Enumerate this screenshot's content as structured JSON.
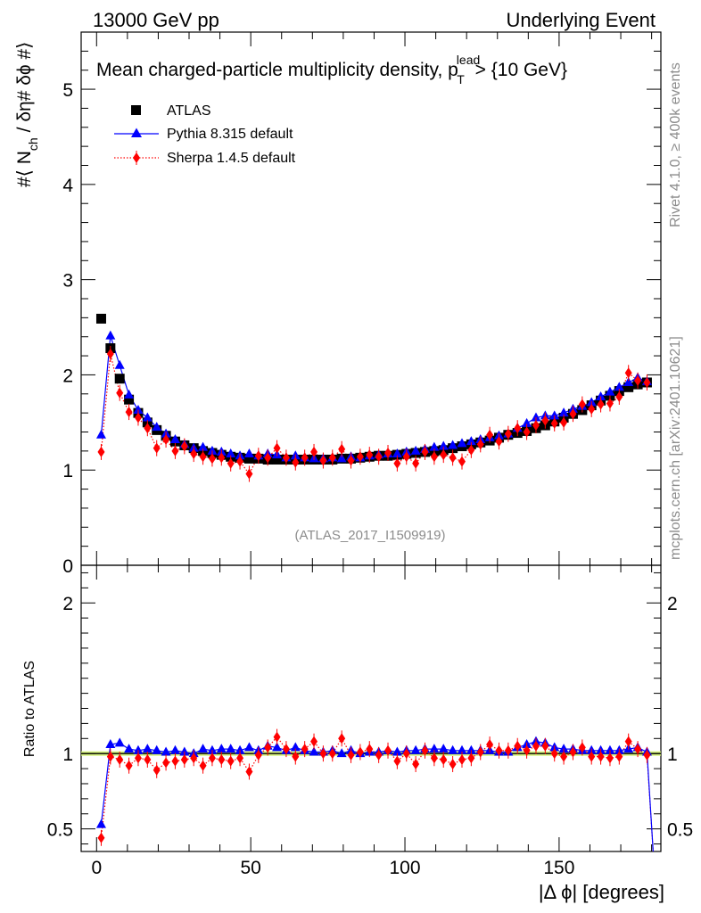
{
  "header": {
    "left": "13000 GeV pp",
    "right": "Underlying Event"
  },
  "side": {
    "rivet": "Rivet 4.1.0, ≥ 400k events",
    "mcplots": "mcplots.cern.ch [arXiv:2401.10621]"
  },
  "chart_data": [
    {
      "type": "scatter",
      "panel": "main",
      "title": "Mean charged-particle multiplicity density, p_T^lead > {10 GeV}",
      "title_parts": {
        "main": "Mean charged-particle multiplicity density, p",
        "sub": "T",
        "sup": "lead",
        "after": " > {10 GeV}"
      },
      "ylabel_parts": {
        "pre": "#⟨ N",
        "sub": "ch",
        "post": "/ δη# δϕ #⟩"
      },
      "ylabel": "#⟨ N_ch / δη# δϕ #⟩",
      "xlabel": "|Δ ϕ| [degrees]",
      "annotation": "(ATLAS_2017_I1509919)",
      "xlim": [
        -5,
        183
      ],
      "ylim": [
        0,
        5.6
      ],
      "yticks": [
        1,
        2,
        3,
        4,
        5
      ],
      "xticks": [
        0,
        50,
        100,
        150
      ],
      "yticks_shown": [
        "0",
        "1",
        "2",
        "3",
        "4",
        "5"
      ],
      "legend": [
        "ATLAS",
        "Pythia 8.315 default",
        "Sherpa 1.4.5 default"
      ],
      "legend_position": "top-left",
      "x": [
        1.5,
        4.5,
        7.5,
        10.5,
        13.5,
        16.5,
        19.5,
        22.5,
        25.5,
        28.5,
        31.5,
        34.5,
        37.5,
        40.5,
        43.5,
        46.5,
        49.5,
        52.5,
        55.5,
        58.5,
        61.5,
        64.5,
        67.5,
        70.5,
        73.5,
        76.5,
        79.5,
        82.5,
        85.5,
        88.5,
        91.5,
        94.5,
        97.5,
        100.5,
        103.5,
        106.5,
        109.5,
        112.5,
        115.5,
        118.5,
        121.5,
        124.5,
        127.5,
        130.5,
        133.5,
        136.5,
        139.5,
        142.5,
        145.5,
        148.5,
        151.5,
        154.5,
        157.5,
        160.5,
        163.5,
        166.5,
        169.5,
        172.5,
        175.5,
        178.5
      ],
      "series": [
        {
          "name": "ATLAS",
          "color": "#000000",
          "marker": "square",
          "values": [
            2.59,
            2.28,
            1.96,
            1.74,
            1.6,
            1.5,
            1.42,
            1.36,
            1.3,
            1.26,
            1.23,
            1.2,
            1.18,
            1.16,
            1.14,
            1.13,
            1.12,
            1.12,
            1.11,
            1.11,
            1.11,
            1.11,
            1.11,
            1.11,
            1.11,
            1.11,
            1.12,
            1.12,
            1.13,
            1.14,
            1.15,
            1.15,
            1.16,
            1.17,
            1.18,
            1.19,
            1.2,
            1.21,
            1.23,
            1.25,
            1.27,
            1.29,
            1.31,
            1.34,
            1.37,
            1.39,
            1.41,
            1.44,
            1.47,
            1.51,
            1.55,
            1.59,
            1.63,
            1.68,
            1.73,
            1.78,
            1.83,
            1.87,
            1.9,
            1.92
          ]
        },
        {
          "name": "Pythia 8.315 default",
          "color": "#0000ff",
          "marker": "triangle",
          "line": "solid",
          "values": [
            1.37,
            2.41,
            2.1,
            1.79,
            1.63,
            1.55,
            1.45,
            1.38,
            1.32,
            1.27,
            1.23,
            1.24,
            1.2,
            1.19,
            1.17,
            1.15,
            1.17,
            1.15,
            1.17,
            1.16,
            1.13,
            1.15,
            1.13,
            1.12,
            1.12,
            1.13,
            1.12,
            1.14,
            1.13,
            1.15,
            1.16,
            1.17,
            1.17,
            1.19,
            1.2,
            1.22,
            1.24,
            1.25,
            1.26,
            1.28,
            1.3,
            1.32,
            1.34,
            1.36,
            1.38,
            1.44,
            1.49,
            1.55,
            1.57,
            1.57,
            1.6,
            1.64,
            1.67,
            1.71,
            1.77,
            1.82,
            1.87,
            1.92,
            1.97,
            1.93
          ]
        },
        {
          "name": "Sherpa 1.4.5 default",
          "color": "#ff0000",
          "marker": "diamond",
          "line": "dotted",
          "values": [
            1.19,
            2.22,
            1.81,
            1.61,
            1.55,
            1.44,
            1.23,
            1.32,
            1.2,
            1.25,
            1.17,
            1.14,
            1.12,
            1.13,
            1.07,
            1.09,
            0.96,
            1.15,
            1.13,
            1.23,
            1.13,
            1.08,
            1.13,
            1.19,
            1.1,
            1.13,
            1.22,
            1.1,
            1.14,
            1.16,
            1.14,
            1.18,
            1.07,
            1.14,
            1.07,
            1.19,
            1.14,
            1.16,
            1.13,
            1.09,
            1.21,
            1.27,
            1.37,
            1.3,
            1.38,
            1.44,
            1.4,
            1.47,
            1.52,
            1.49,
            1.5,
            1.59,
            1.69,
            1.64,
            1.69,
            1.7,
            1.77,
            2.02,
            1.94,
            1.92
          ]
        }
      ]
    },
    {
      "type": "scatter",
      "panel": "ratio",
      "ylabel": "Ratio to ATLAS",
      "xlabel": "|Δ ϕ| [degrees]",
      "xlim": [
        -5,
        183
      ],
      "ylim": [
        0.35,
        2.25
      ],
      "yticks": [
        0.5,
        1,
        2
      ],
      "ytick_labels": [
        "0.5",
        "1",
        "2"
      ],
      "xticks": [
        0,
        50,
        100,
        150
      ],
      "xtick_labels": [
        "0",
        "50",
        "100",
        "150"
      ],
      "band": {
        "center": 1.0,
        "low": 0.985,
        "high": 1.015,
        "color": "#ccee66"
      },
      "x": [
        1.5,
        4.5,
        7.5,
        10.5,
        13.5,
        16.5,
        19.5,
        22.5,
        25.5,
        28.5,
        31.5,
        34.5,
        37.5,
        40.5,
        43.5,
        46.5,
        49.5,
        52.5,
        55.5,
        58.5,
        61.5,
        64.5,
        67.5,
        70.5,
        73.5,
        76.5,
        79.5,
        82.5,
        85.5,
        88.5,
        91.5,
        94.5,
        97.5,
        100.5,
        103.5,
        106.5,
        109.5,
        112.5,
        115.5,
        118.5,
        121.5,
        124.5,
        127.5,
        130.5,
        133.5,
        136.5,
        139.5,
        142.5,
        145.5,
        148.5,
        151.5,
        154.5,
        157.5,
        160.5,
        163.5,
        166.5,
        169.5,
        172.5,
        175.5,
        178.5
      ],
      "series": [
        {
          "name": "Pythia 8.315 default",
          "color": "#0000ff",
          "marker": "triangle",
          "line": "solid",
          "values": [
            0.53,
            1.06,
            1.07,
            1.03,
            1.02,
            1.03,
            1.02,
            1.01,
            1.02,
            1.01,
            1.0,
            1.03,
            1.02,
            1.03,
            1.03,
            1.02,
            1.04,
            1.02,
            1.05,
            1.04,
            1.02,
            1.04,
            1.02,
            1.01,
            1.01,
            1.02,
            1.0,
            1.02,
            1.0,
            1.01,
            1.01,
            1.02,
            1.01,
            1.02,
            1.02,
            1.03,
            1.03,
            1.03,
            1.02,
            1.02,
            1.02,
            1.02,
            1.02,
            1.01,
            1.01,
            1.04,
            1.06,
            1.08,
            1.07,
            1.04,
            1.03,
            1.03,
            1.02,
            1.02,
            1.02,
            1.02,
            1.02,
            1.03,
            1.04,
            1.01
          ]
        },
        {
          "name": "Sherpa 1.4.5 default",
          "color": "#ff0000",
          "marker": "diamond",
          "line": "dotted",
          "values": [
            0.44,
            0.98,
            0.96,
            0.92,
            0.97,
            0.96,
            0.89,
            0.94,
            0.95,
            0.96,
            0.97,
            0.92,
            0.97,
            0.96,
            0.95,
            0.97,
            0.88,
            0.99,
            1.04,
            1.11,
            1.03,
            0.98,
            1.03,
            1.08,
            1.0,
            1.0,
            1.1,
            0.99,
            1.01,
            1.03,
            0.99,
            1.02,
            0.95,
            1.0,
            0.93,
            1.02,
            0.97,
            0.96,
            0.93,
            0.96,
            0.97,
            1.01,
            1.06,
            1.02,
            1.02,
            1.05,
            1.02,
            1.05,
            1.05,
            1.0,
            0.98,
            1.01,
            1.04,
            0.98,
            0.98,
            0.97,
            0.98,
            1.08,
            1.03,
            0.99
          ]
        }
      ]
    }
  ]
}
